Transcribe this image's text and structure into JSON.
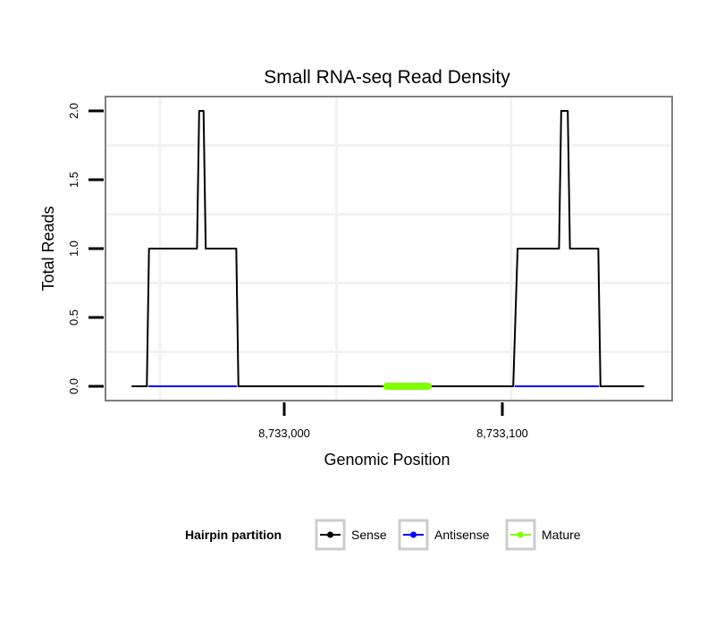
{
  "chart_data": {
    "type": "line",
    "title": "Small RNA-seq Read Density",
    "xlabel": "Genomic Position",
    "ylabel": "Total Reads",
    "xlim": [
      8732918,
      8733178
    ],
    "ylim": [
      0,
      2.0
    ],
    "x_ticks": [
      8733000,
      8733100
    ],
    "x_tick_labels": [
      "8,733,000",
      "8,733,100"
    ],
    "y_ticks": [
      0,
      0.5,
      1.0,
      1.5,
      2.0
    ],
    "y_tick_labels": [
      "0.0",
      "0.5",
      "1.0",
      "1.5",
      "2.0"
    ],
    "x_grid": [
      8732943,
      8733024,
      8733104
    ],
    "y_grid": [
      0.25,
      0.75,
      1.25,
      1.75
    ],
    "grid": true,
    "legend": {
      "title": "Hairpin partition",
      "placement": "bottom",
      "entries": [
        "Sense",
        "Antisense",
        "Mature"
      ]
    },
    "series": [
      {
        "name": "Sense",
        "color": "#000000",
        "width": 2,
        "x": [
          8732930,
          8732937,
          8732938,
          8732960,
          8732961,
          8732963,
          8732964,
          8732978,
          8732979,
          8733105,
          8733107,
          8733126,
          8733127,
          8733130,
          8733131,
          8733144,
          8733145,
          8733165
        ],
        "y": [
          0,
          0,
          1,
          1,
          2,
          2,
          1,
          1,
          0,
          0,
          1,
          1,
          2,
          2,
          1,
          1,
          0,
          0
        ]
      },
      {
        "name": "Antisense",
        "color": "#0000ff",
        "width": 2,
        "segments": [
          [
            8732938,
            8732978
          ],
          [
            8733106,
            8733144
          ]
        ],
        "y": 0
      },
      {
        "name": "Mature",
        "color": "#7fff00",
        "width": 8,
        "segments": [
          [
            8733047,
            8733066
          ]
        ],
        "y": 0
      }
    ]
  }
}
